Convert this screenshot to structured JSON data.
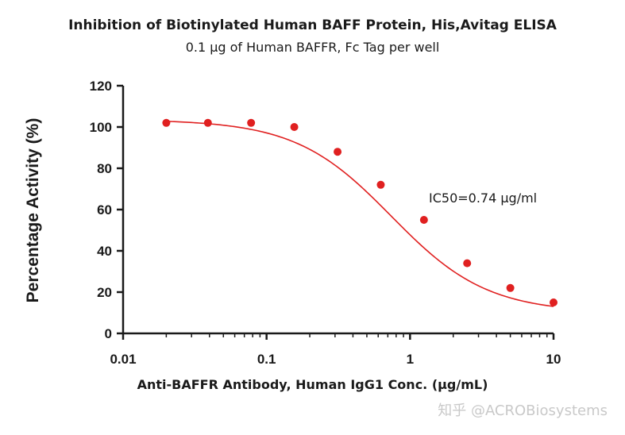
{
  "chart_data": {
    "type": "scatter",
    "title": "Inhibition of Biotinylated Human BAFF Protein, His,Avitag ELISA",
    "subtitle": "0.1 μg of Human BAFFR, Fc Tag per well",
    "xlabel": "Anti-BAFFR Antibody, Human IgG1 Conc. (μg/mL)",
    "ylabel": "Percentage Activity (%)",
    "x_scale": "log",
    "xlim": [
      0.01,
      10
    ],
    "ylim": [
      0,
      120
    ],
    "x_tick_labels": [
      "0.01",
      "0.1",
      "1",
      "10"
    ],
    "x_tick_values": [
      0.01,
      0.1,
      1,
      10
    ],
    "y_tick_labels": [
      "0",
      "20",
      "40",
      "60",
      "80",
      "100",
      "120"
    ],
    "y_tick_values": [
      0,
      20,
      40,
      60,
      80,
      100,
      120
    ],
    "grid": false,
    "series": [
      {
        "x": [
          0.02,
          0.039,
          0.078,
          0.156,
          0.3125,
          0.625,
          1.25,
          2.5,
          5,
          10
        ],
        "y": [
          102,
          102,
          102,
          100,
          88,
          72,
          55,
          34,
          22,
          15
        ]
      }
    ],
    "fit_curve": {
      "model": "4PL",
      "top": 103.6,
      "bottom": 10,
      "ic50": 0.74,
      "hill_slope": 1.3
    },
    "annotation": "IC50=0.74 μg/ml",
    "color": "#e02020"
  },
  "watermark": "知乎 @ACROBiosystems"
}
